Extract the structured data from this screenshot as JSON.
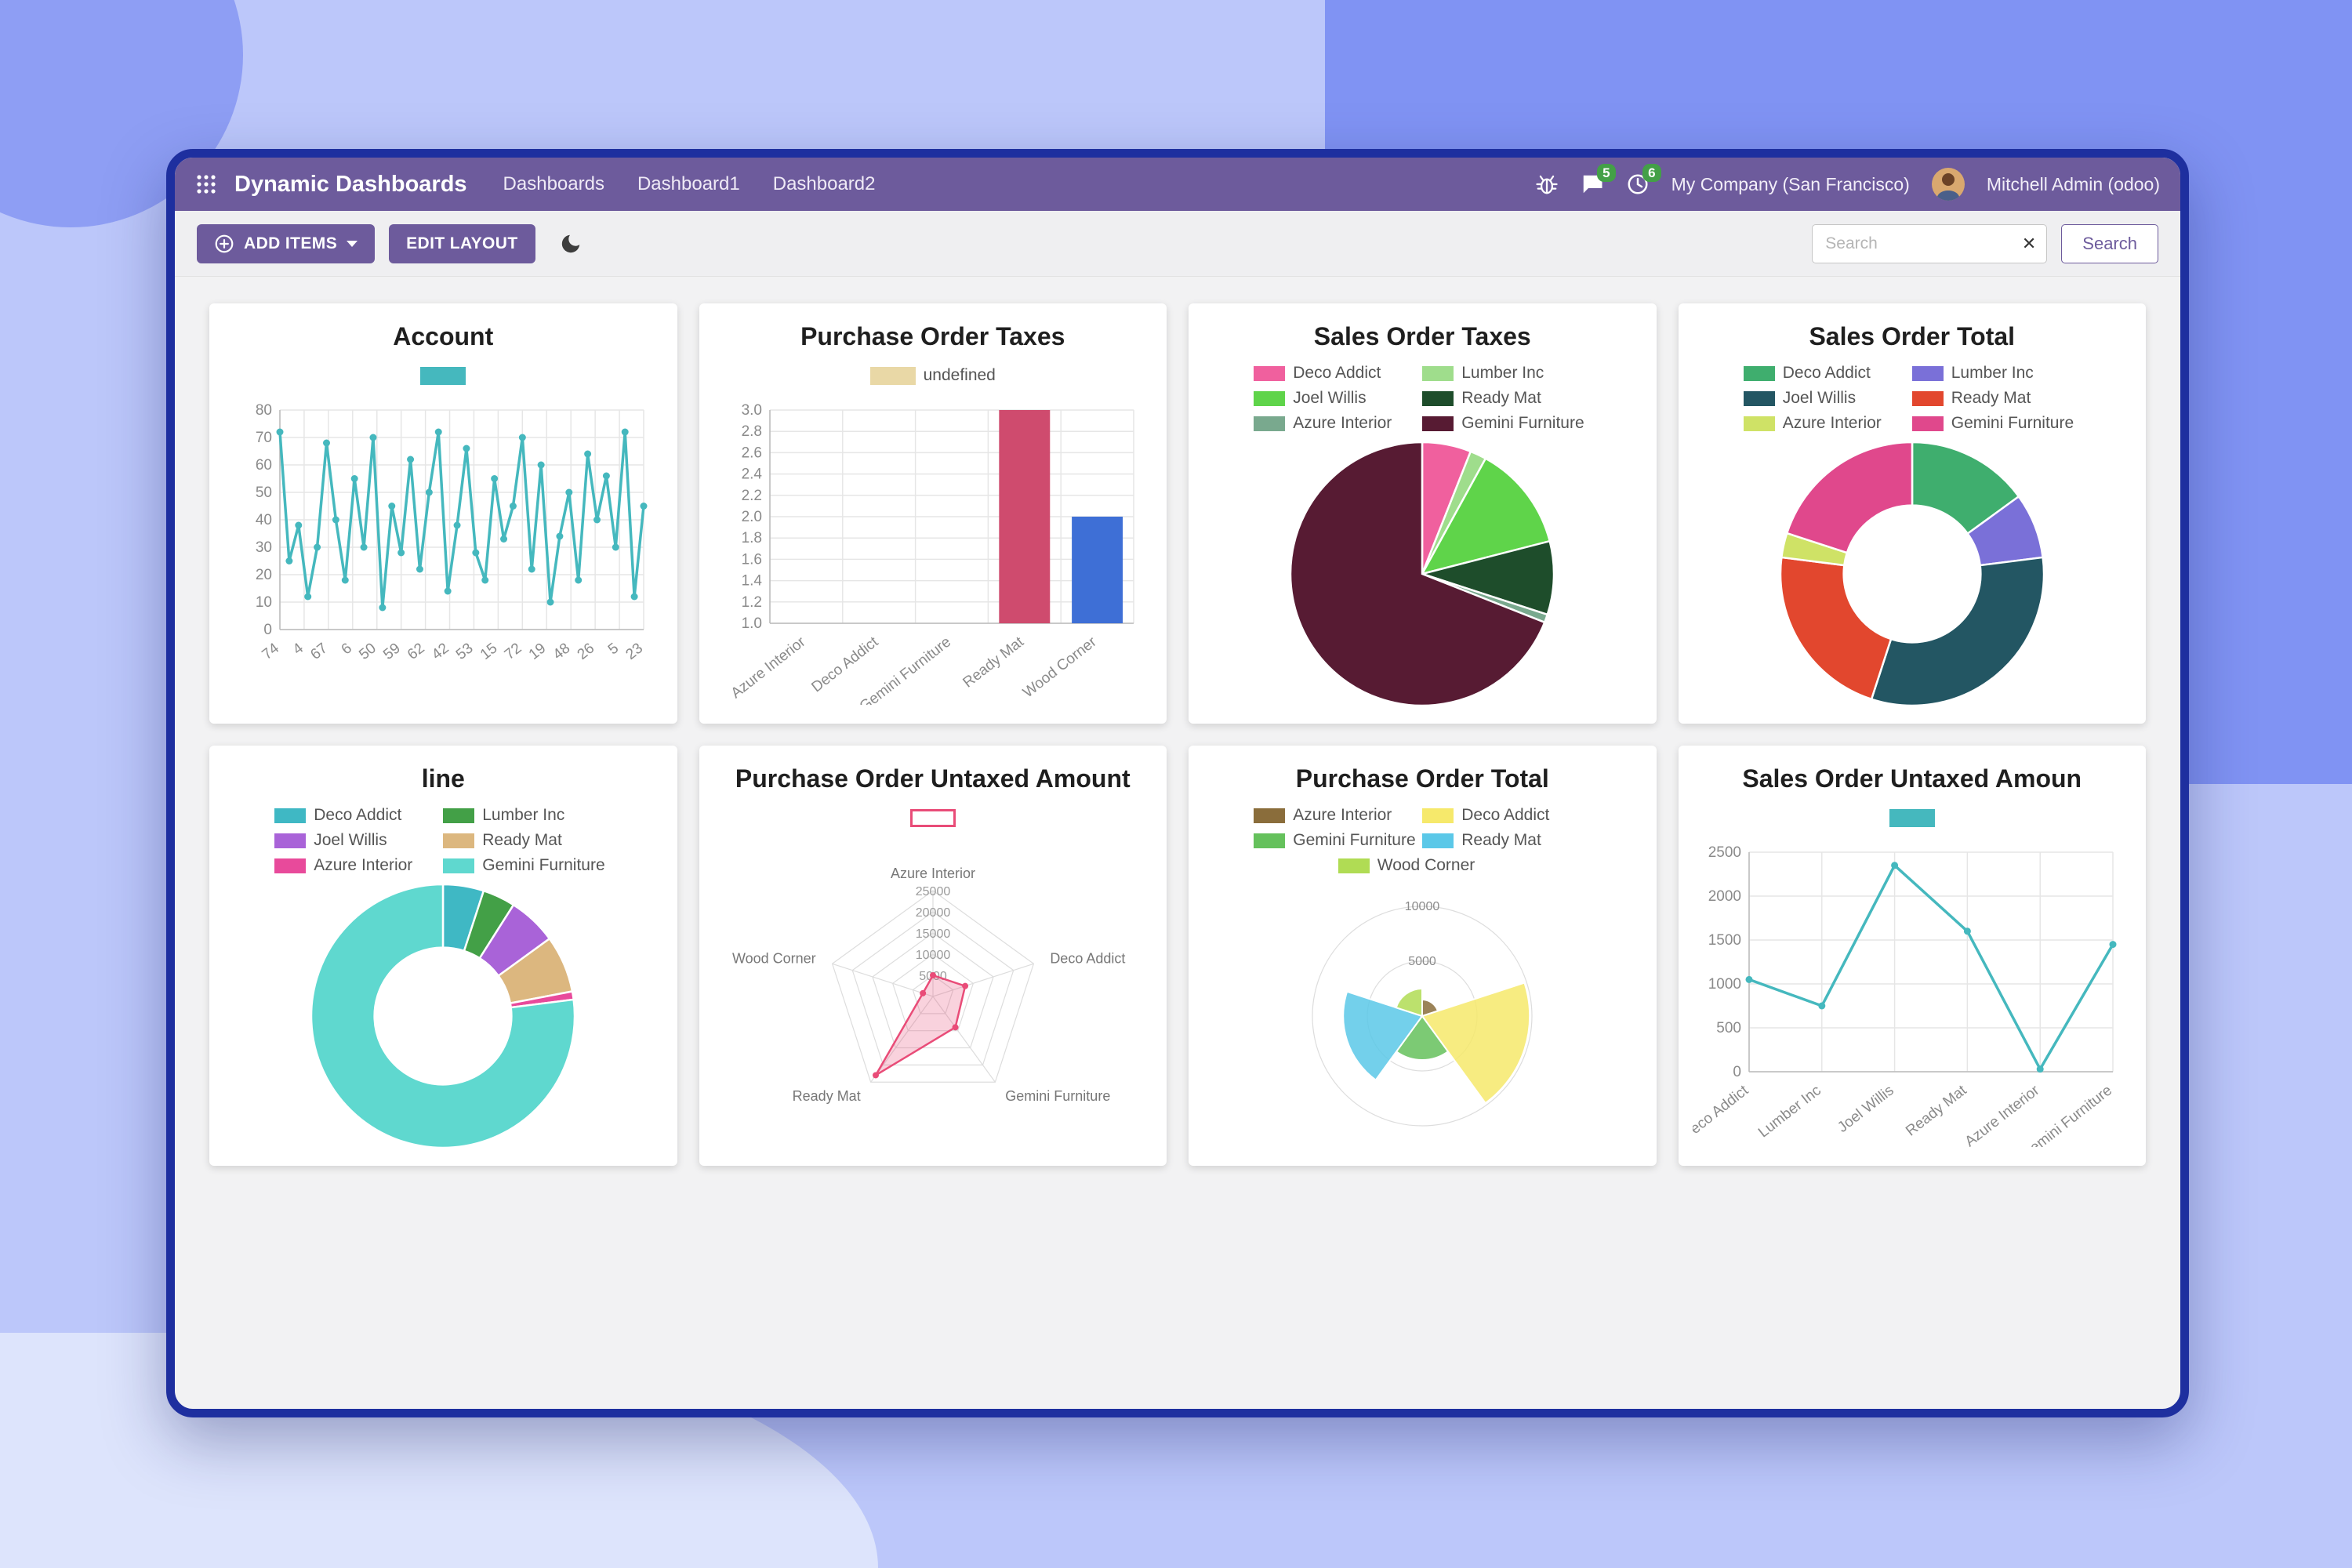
{
  "navbar": {
    "brand": "Dynamic Dashboards",
    "menu": [
      "Dashboards",
      "Dashboard1",
      "Dashboard2"
    ],
    "messages_badge": "5",
    "activities_badge": "6",
    "company": "My Company (San Francisco)",
    "user": "Mitchell Admin (odoo)"
  },
  "toolbar": {
    "add_items_label": "ADD ITEMS",
    "edit_layout_label": "EDIT LAYOUT",
    "search_placeholder": "Search",
    "search_button_label": "Search"
  },
  "icons": {
    "apps": "grid-icon",
    "bug": "bug-icon",
    "messages": "chat-icon",
    "activities": "clock-icon",
    "dark_mode": "moon-icon",
    "add_items": "plus-circle-icon",
    "add_items_caret": "chevron-down-icon",
    "clear_search": "x-icon"
  },
  "colors": {
    "accent_purple": "#6d5b9c",
    "window_border": "#1e2f9f",
    "badge_green": "#43a047",
    "teal": "#45b8be",
    "content_bg": "#f2f2f3"
  },
  "cards": [
    {
      "title": "Account",
      "chart": {
        "type": "line",
        "color": "#45b8be",
        "legend": [
          {
            "label": "",
            "color": "#45b8be"
          }
        ],
        "x_labels": [
          "74",
          "4",
          "67",
          "6",
          "50",
          "59",
          "62",
          "42",
          "53",
          "15",
          "72",
          "19",
          "48",
          "26",
          "5",
          "23"
        ],
        "values": [
          72,
          25,
          38,
          12,
          30,
          68,
          40,
          18,
          55,
          30,
          70,
          8,
          45,
          28,
          62,
          22,
          50,
          72,
          14,
          38,
          66,
          28,
          18,
          55,
          33,
          45,
          70,
          22,
          60,
          10,
          34,
          50,
          18,
          64,
          40,
          56,
          30,
          72,
          12,
          45
        ],
        "y_ticks": [
          "0",
          "10",
          "20",
          "30",
          "40",
          "50",
          "60",
          "70",
          "80"
        ]
      }
    },
    {
      "title": "Purchase Order Taxes",
      "chart": {
        "type": "bar",
        "legend": [
          {
            "label": "undefined",
            "color": "#e9d8a6"
          }
        ],
        "categories": [
          "Azure Interior",
          "Deco Addict",
          "Gemini Furniture",
          "Ready Mat",
          "Wood Corner"
        ],
        "values": [
          0,
          0,
          0,
          3,
          2
        ],
        "bar_colors": [
          "#e9d8a6",
          "#e9d8a6",
          "#e9d8a6",
          "#cf4b6e",
          "#3e6fd6"
        ],
        "y_ticks": [
          "1.0",
          "1.2",
          "1.4",
          "1.6",
          "1.8",
          "2.0",
          "2.2",
          "2.4",
          "2.6",
          "2.8",
          "3.0"
        ]
      }
    },
    {
      "title": "Sales Order Taxes",
      "chart": {
        "type": "pie",
        "cutout": 0,
        "legend": [
          {
            "label": "Deco Addict",
            "color": "#f0609e"
          },
          {
            "label": "Lumber Inc",
            "color": "#9fdd8c"
          },
          {
            "label": "Joel Willis",
            "color": "#5fd44a"
          },
          {
            "label": "Ready Mat",
            "color": "#1e4d2b"
          },
          {
            "label": "Azure Interior",
            "color": "#79a98e"
          },
          {
            "label": "Gemini Furniture",
            "color": "#571b33"
          }
        ],
        "values": [
          6,
          2,
          13,
          9,
          1,
          69
        ]
      }
    },
    {
      "title": "Sales Order Total",
      "chart": {
        "type": "pie",
        "cutout": 0.52,
        "legend": [
          {
            "label": "Deco Addict",
            "color": "#3fae6e"
          },
          {
            "label": "Lumber Inc",
            "color": "#7a70d8"
          },
          {
            "label": "Joel Willis",
            "color": "#235663"
          },
          {
            "label": "Ready Mat",
            "color": "#e2472e"
          },
          {
            "label": "Azure Interior",
            "color": "#cfe266"
          },
          {
            "label": "Gemini Furniture",
            "color": "#e0488c"
          }
        ],
        "values": [
          15,
          8,
          32,
          22,
          3,
          20
        ]
      }
    },
    {
      "title": "line",
      "chart": {
        "type": "pie",
        "cutout": 0.52,
        "legend": [
          {
            "label": "Deco Addict",
            "color": "#3fb8c4"
          },
          {
            "label": "Lumber Inc",
            "color": "#43a047"
          },
          {
            "label": "Joel Willis",
            "color": "#a963d8"
          },
          {
            "label": "Ready Mat",
            "color": "#dcb77f"
          },
          {
            "label": "Azure Interior",
            "color": "#e84a9b"
          },
          {
            "label": "Gemini Furniture",
            "color": "#5fd8cf"
          }
        ],
        "values": [
          5,
          4,
          6,
          7,
          1,
          77
        ]
      }
    },
    {
      "title": "Purchase Order Untaxed Amount",
      "chart": {
        "type": "radar",
        "legend": [
          {
            "label": "",
            "color": "#ffffff",
            "border": "#e94c78"
          }
        ],
        "axes": [
          "Azure Interior",
          "Deco Addict",
          "Gemini Furniture",
          "Ready Mat",
          "Wood Corner"
        ],
        "values": [
          5000,
          8000,
          9000,
          23000,
          2500
        ],
        "ticks": [
          "5000",
          "10000",
          "15000",
          "20000",
          "25000"
        ],
        "max": 25000,
        "line_color": "#e94c78",
        "fill_color": "rgba(233,76,120,0.25)"
      }
    },
    {
      "title": "Purchase Order Total",
      "chart": {
        "type": "polar",
        "legend": [
          {
            "label": "Azure Interior",
            "color": "#8a6d3b"
          },
          {
            "label": "Deco Addict",
            "color": "#f6e96b"
          },
          {
            "label": "Gemini Furniture",
            "color": "#65c15c"
          },
          {
            "label": "Ready Mat",
            "color": "#5bc8e8"
          },
          {
            "label": "Wood Corner",
            "color": "#b0dc54"
          }
        ],
        "values": [
          1500,
          9800,
          4000,
          7200,
          2500
        ],
        "ticks": [
          "5000",
          "10000"
        ],
        "max": 10000
      }
    },
    {
      "title": "Sales Order Untaxed Amoun",
      "chart": {
        "type": "line",
        "color": "#45b8be",
        "legend": [
          {
            "label": "",
            "color": "#45b8be"
          }
        ],
        "x_labels": [
          "Deco Addict",
          "Lumber Inc",
          "Joel Willis",
          "Ready Mat",
          "Azure Interior",
          "Gemini Furniture"
        ],
        "values": [
          1050,
          750,
          2350,
          1600,
          30,
          1450
        ],
        "y_ticks": [
          "0",
          "500",
          "1000",
          "1500",
          "2000",
          "2500"
        ]
      }
    }
  ]
}
